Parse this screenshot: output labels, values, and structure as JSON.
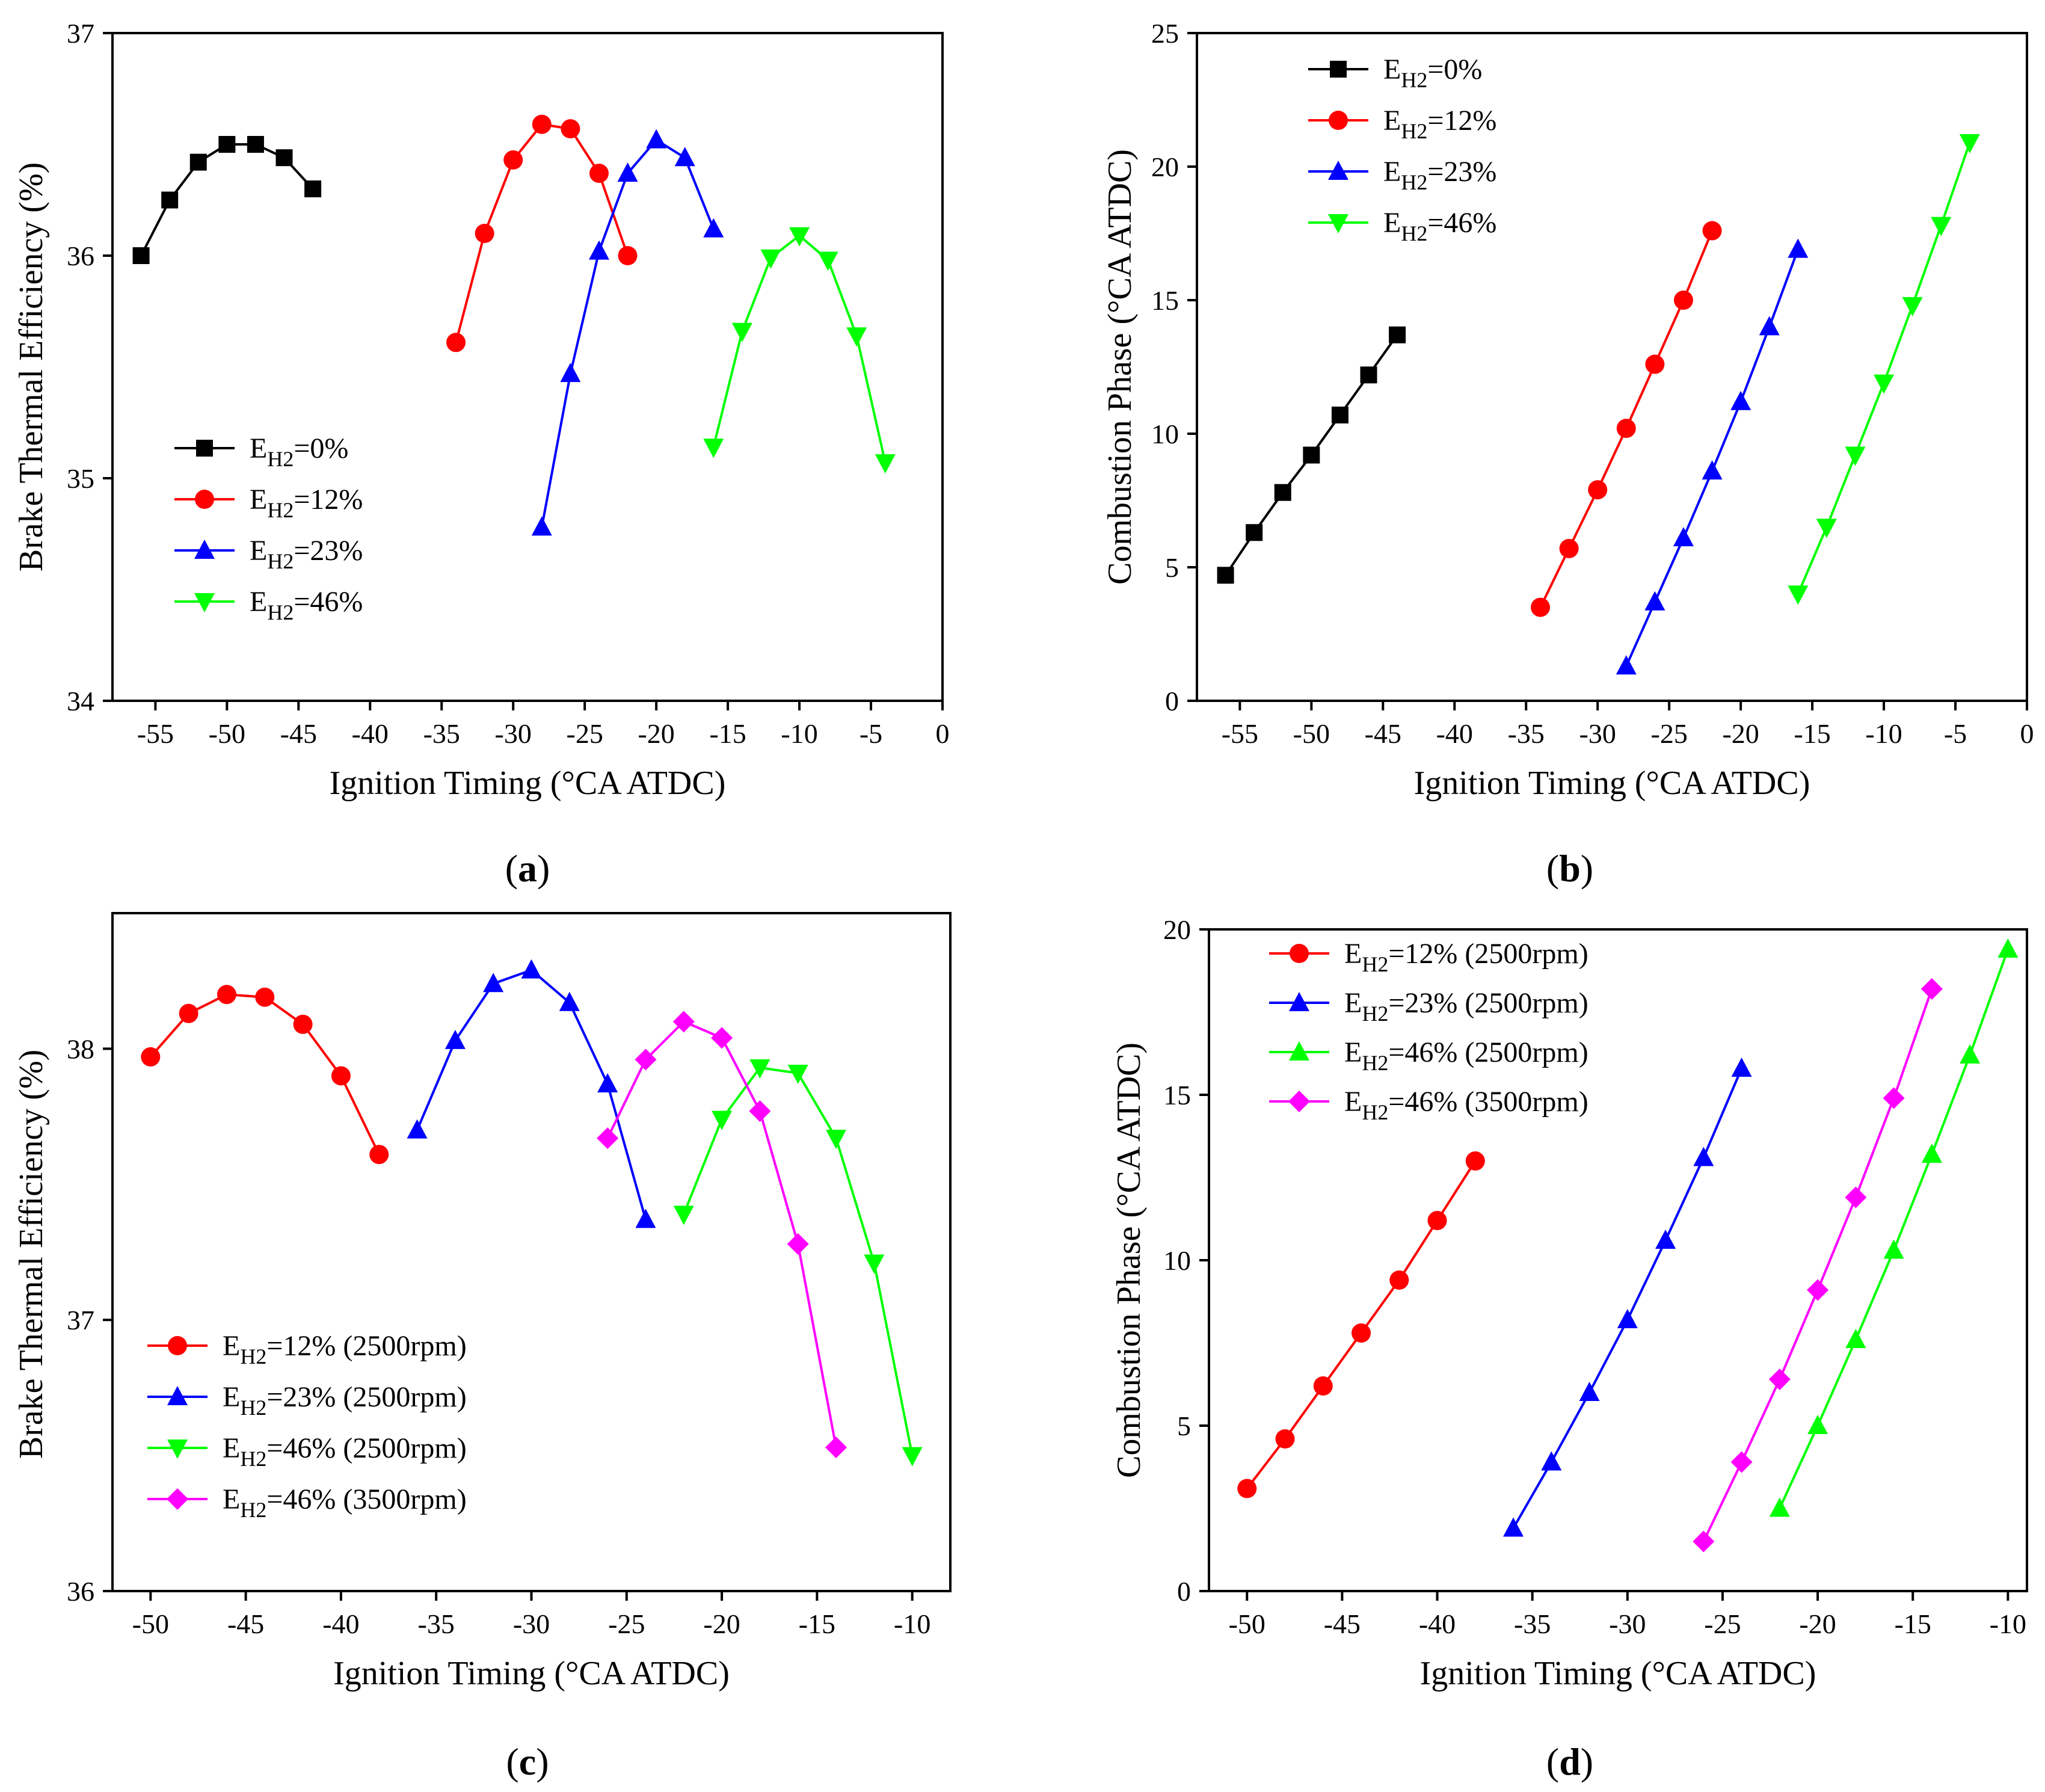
{
  "chart_data": [
    {
      "panel_label": "a",
      "type": "line",
      "xlabel": "Ignition Timing (°CA ATDC)",
      "ylabel": "Brake Thermal Efficiency (%)",
      "xlim": [
        -58,
        0
      ],
      "ylim": [
        34,
        37
      ],
      "xticks": [
        -55,
        -50,
        -45,
        -40,
        -35,
        -30,
        -25,
        -20,
        -15,
        -10,
        -5,
        0
      ],
      "yticks": [
        34,
        35,
        36,
        37
      ],
      "legend_position": "center-left",
      "series": [
        {
          "name": "E_H2=0%",
          "label_main": "E",
          "label_sub": "H2",
          "label_rest": "=0%",
          "color": "#000000",
          "marker": "square",
          "x": [
            -56,
            -54,
            -52,
            -50,
            -48,
            -46,
            -44
          ],
          "y": [
            36.0,
            36.25,
            36.42,
            36.5,
            36.5,
            36.44,
            36.3
          ]
        },
        {
          "name": "E_H2=12%",
          "label_main": "E",
          "label_sub": "H2",
          "label_rest": "=12%",
          "color": "#ff0000",
          "marker": "circle",
          "x": [
            -34,
            -32,
            -30,
            -28,
            -26,
            -24,
            -22
          ],
          "y": [
            35.61,
            36.1,
            36.43,
            36.59,
            36.57,
            36.37,
            36.0
          ]
        },
        {
          "name": "E_H2=23%",
          "label_main": "E",
          "label_sub": "H2",
          "label_rest": "=23%",
          "color": "#0000ff",
          "marker": "triangle-up",
          "x": [
            -28,
            -26,
            -24,
            -22,
            -20,
            -18,
            -16
          ],
          "y": [
            34.78,
            35.47,
            36.02,
            36.37,
            36.52,
            36.44,
            36.12
          ]
        },
        {
          "name": "E_H2=46%",
          "label_main": "E",
          "label_sub": "H2",
          "label_rest": "=46%",
          "color": "#00ff00",
          "marker": "triangle-down",
          "x": [
            -16,
            -14,
            -12,
            -10,
            -8,
            -6,
            -4
          ],
          "y": [
            35.14,
            35.66,
            35.99,
            36.09,
            35.98,
            35.64,
            35.07
          ]
        }
      ]
    },
    {
      "panel_label": "b",
      "type": "line",
      "xlabel": "Ignition Timing  (°CA ATDC)",
      "ylabel": "Combustion Phase (°CA ATDC)",
      "xlim": [
        -58,
        0
      ],
      "ylim": [
        0,
        25
      ],
      "xticks": [
        -55,
        -50,
        -45,
        -40,
        -35,
        -30,
        -25,
        -20,
        -15,
        -10,
        -5,
        0
      ],
      "yticks": [
        0,
        5,
        10,
        15,
        20,
        25
      ],
      "legend_position": "top-left",
      "series": [
        {
          "name": "E_H2=0%",
          "label_main": "E",
          "label_sub": "H2",
          "label_rest": "=0%",
          "color": "#000000",
          "marker": "square",
          "x": [
            -56,
            -54,
            -52,
            -50,
            -48,
            -46,
            -44
          ],
          "y": [
            4.7,
            6.3,
            7.8,
            9.2,
            10.7,
            12.2,
            13.7
          ]
        },
        {
          "name": "E_H2=12%",
          "label_main": "E",
          "label_sub": "H2",
          "label_rest": "=12%",
          "color": "#ff0000",
          "marker": "circle",
          "x": [
            -34,
            -32,
            -30,
            -28,
            -26,
            -24,
            -22
          ],
          "y": [
            3.5,
            5.7,
            7.9,
            10.2,
            12.6,
            15.0,
            17.6
          ]
        },
        {
          "name": "E_H2=23%",
          "label_main": "E",
          "label_sub": "H2",
          "label_rest": "=23%",
          "color": "#0000ff",
          "marker": "triangle-up",
          "x": [
            -28,
            -26,
            -24,
            -22,
            -20,
            -18,
            -16
          ],
          "y": [
            1.3,
            3.7,
            6.1,
            8.6,
            11.2,
            14.0,
            16.9
          ]
        },
        {
          "name": "E_H2=46%",
          "label_main": "E",
          "label_sub": "H2",
          "label_rest": "=46%",
          "color": "#00ff00",
          "marker": "triangle-down",
          "x": [
            -16,
            -14,
            -12,
            -10,
            -8,
            -6,
            -4
          ],
          "y": [
            4.0,
            6.5,
            9.2,
            11.9,
            14.8,
            17.8,
            20.9
          ]
        }
      ]
    },
    {
      "panel_label": "c",
      "type": "line",
      "xlabel": "Ignition Timing (°CA ATDC)",
      "ylabel": "Brake Thermal Efficiency (%)",
      "xlim": [
        -52,
        -8
      ],
      "ylim": [
        36,
        38.5
      ],
      "xticks": [
        -50,
        -45,
        -40,
        -35,
        -30,
        -25,
        -20,
        -15,
        -10
      ],
      "yticks": [
        36,
        37,
        38
      ],
      "legend_position": "bottom-left",
      "series": [
        {
          "name": "E_H2=12% (2500rpm)",
          "label_main": "E",
          "label_sub": "H2",
          "label_rest": "=12% (2500rpm)",
          "color": "#ff0000",
          "marker": "circle",
          "x": [
            -50,
            -48,
            -46,
            -44,
            -42,
            -40,
            -38
          ],
          "y": [
            37.97,
            38.13,
            38.2,
            38.19,
            38.09,
            37.9,
            37.61
          ]
        },
        {
          "name": "E_H2=23% (2500rpm)",
          "label_main": "E",
          "label_sub": "H2",
          "label_rest": "=23% (2500rpm)",
          "color": "#0000ff",
          "marker": "triangle-up",
          "x": [
            -36,
            -34,
            -32,
            -30,
            -28,
            -26,
            -24
          ],
          "y": [
            37.7,
            38.03,
            38.24,
            38.29,
            38.17,
            37.87,
            37.37
          ]
        },
        {
          "name": "E_H2=46% (2500rpm)",
          "label_main": "E",
          "label_sub": "H2",
          "label_rest": "=46% (2500rpm)",
          "color": "#00ff00",
          "marker": "triangle-down",
          "x": [
            -22,
            -20,
            -18,
            -16,
            -14,
            -12,
            -10
          ],
          "y": [
            37.39,
            37.74,
            37.93,
            37.91,
            37.67,
            37.21,
            36.5
          ]
        },
        {
          "name": "E_H2=46% (3500rpm)",
          "label_main": "E",
          "label_sub": "H2",
          "label_rest": "=46% (3500rpm)",
          "color": "#ff00ff",
          "marker": "diamond",
          "x": [
            -26,
            -24,
            -22,
            -20,
            -18,
            -16,
            -14
          ],
          "y": [
            37.67,
            37.96,
            38.1,
            38.04,
            37.77,
            37.28,
            36.53
          ]
        }
      ]
    },
    {
      "panel_label": "d",
      "type": "line",
      "xlabel": "Ignition Timing (°CA ATDC)",
      "ylabel": "Combustion Phase (°CA ATDC)",
      "xlim": [
        -52,
        -9
      ],
      "ylim": [
        0,
        20
      ],
      "xticks": [
        -50,
        -45,
        -40,
        -35,
        -30,
        -25,
        -20,
        -15,
        -10
      ],
      "yticks": [
        0,
        5,
        10,
        15,
        20
      ],
      "legend_position": "top-left",
      "series": [
        {
          "name": "E_H2=12% (2500rpm)",
          "label_main": "E",
          "label_sub": "H2",
          "label_rest": "=12% (2500rpm)",
          "color": "#ff0000",
          "marker": "circle",
          "x": [
            -50,
            -48,
            -46,
            -44,
            -42,
            -40,
            -38
          ],
          "y": [
            3.1,
            4.6,
            6.2,
            7.8,
            9.4,
            11.2,
            13.0
          ]
        },
        {
          "name": "E_H2=23% (2500rpm)",
          "label_main": "E",
          "label_sub": "H2",
          "label_rest": "=23% (2500rpm)",
          "color": "#0000ff",
          "marker": "triangle-up",
          "x": [
            -36,
            -34,
            -32,
            -30,
            -28,
            -26,
            -24
          ],
          "y": [
            1.9,
            3.9,
            6.0,
            8.2,
            10.6,
            13.1,
            15.8
          ]
        },
        {
          "name": "E_H2=46% (2500rpm)",
          "label_main": "E",
          "label_sub": "H2",
          "label_rest": "=46% (2500rpm)",
          "color": "#00ff00",
          "marker": "triangle-up",
          "x": [
            -22,
            -20,
            -18,
            -16,
            -14,
            -12,
            -10
          ],
          "y": [
            2.5,
            5.0,
            7.6,
            10.3,
            13.2,
            16.2,
            19.4
          ]
        },
        {
          "name": "E_H2=46% (3500rpm)",
          "label_main": "E",
          "label_sub": "H2",
          "label_rest": "=46% (3500rpm)",
          "color": "#ff00ff",
          "marker": "diamond",
          "x": [
            -26,
            -24,
            -22,
            -20,
            -18,
            -16,
            -14
          ],
          "y": [
            1.5,
            3.9,
            6.4,
            9.1,
            11.9,
            14.9,
            18.2
          ]
        }
      ]
    }
  ]
}
